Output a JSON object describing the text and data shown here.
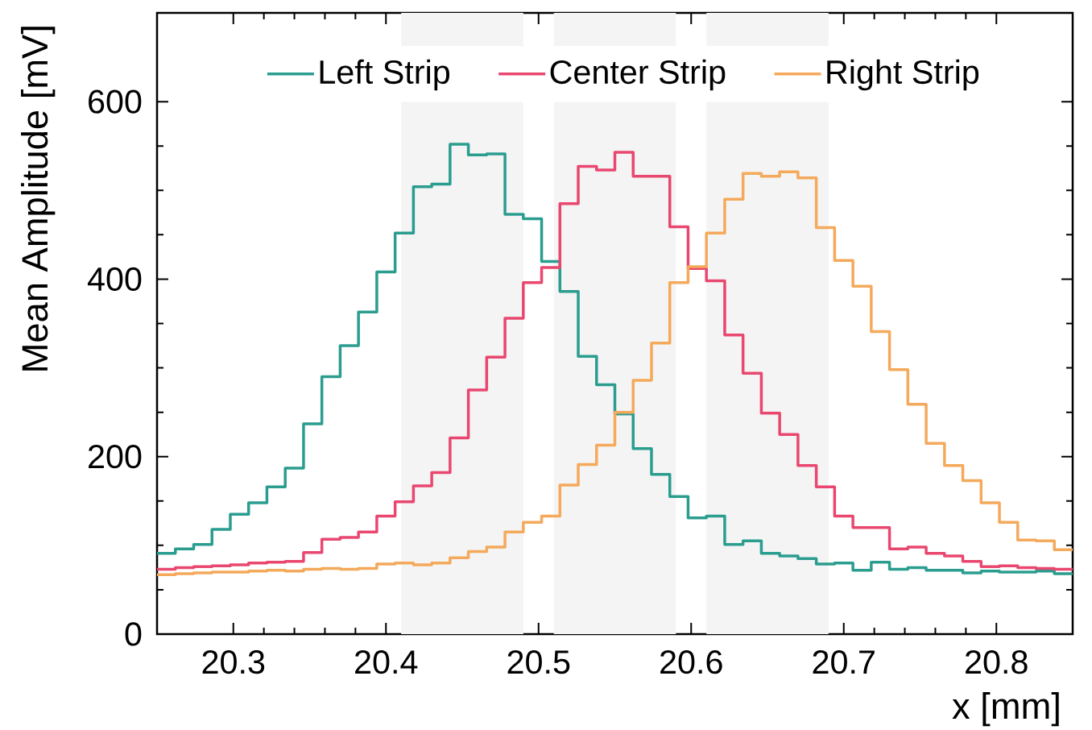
{
  "chart_data": {
    "type": "histogram",
    "xlabel": "x [mm]",
    "ylabel": "Mean Amplitude [mV]",
    "bins": [
      20.25,
      20.262,
      20.274,
      20.286,
      20.298,
      20.31,
      20.322,
      20.334,
      20.346,
      20.358,
      20.37,
      20.382,
      20.394,
      20.406,
      20.418,
      20.43,
      20.442,
      20.454,
      20.466,
      20.478,
      20.49,
      20.502,
      20.514,
      20.526,
      20.538,
      20.55,
      20.562,
      20.574,
      20.586,
      20.598,
      20.61,
      20.622,
      20.634,
      20.646,
      20.658,
      20.67,
      20.682,
      20.694,
      20.706,
      20.718,
      20.73,
      20.742,
      20.754,
      20.766,
      20.778,
      20.79,
      20.802,
      20.814,
      20.826,
      20.838,
      20.85
    ],
    "series": [
      {
        "name": "Left Strip",
        "color": "#2a9d8f",
        "values": [
          91,
          96,
          101,
          118,
          135,
          148,
          166,
          187,
          237,
          290,
          325,
          363,
          408,
          452,
          504,
          507,
          552,
          540,
          541,
          473,
          468,
          420,
          386,
          313,
          281,
          248,
          209,
          180,
          155,
          131,
          133,
          101,
          105,
          91,
          88,
          85,
          79,
          80,
          72,
          81,
          73,
          75,
          72,
          72,
          69,
          71,
          70,
          70,
          71,
          68
        ]
      },
      {
        "name": "Center Strip",
        "color": "#e9476f",
        "values": [
          73,
          75,
          76,
          77,
          78,
          80,
          81,
          82,
          92,
          107,
          109,
          115,
          133,
          149,
          167,
          182,
          221,
          275,
          312,
          356,
          396,
          413,
          485,
          527,
          523,
          543,
          516,
          516,
          459,
          412,
          398,
          337,
          294,
          249,
          225,
          190,
          166,
          133,
          120,
          120,
          96,
          98,
          91,
          88,
          82,
          76,
          77,
          75,
          74,
          73
        ]
      },
      {
        "name": "Right Strip",
        "color": "#f4a95b",
        "values": [
          67,
          68,
          69,
          70,
          70,
          71,
          72,
          71,
          73,
          74,
          73,
          74,
          79,
          80,
          78,
          80,
          86,
          93,
          98,
          115,
          126,
          133,
          168,
          191,
          213,
          250,
          286,
          328,
          396,
          414,
          452,
          490,
          519,
          516,
          521,
          514,
          458,
          421,
          392,
          341,
          298,
          259,
          215,
          190,
          173,
          148,
          126,
          106,
          105,
          95
        ]
      }
    ],
    "bands": [
      {
        "axis": "x",
        "from": 20.41,
        "to": 20.49,
        "color": "#f4f4f4"
      },
      {
        "axis": "x",
        "from": 20.51,
        "to": 20.59,
        "color": "#f4f4f4"
      },
      {
        "axis": "x",
        "from": 20.61,
        "to": 20.69,
        "color": "#f4f4f4"
      }
    ],
    "xlim": [
      20.25,
      20.85
    ],
    "xticks": [
      20.3,
      20.4,
      20.5,
      20.6,
      20.7,
      20.8
    ],
    "ylim": [
      0,
      700
    ],
    "yticks": [
      0,
      200,
      400,
      600
    ],
    "legend": "top"
  }
}
